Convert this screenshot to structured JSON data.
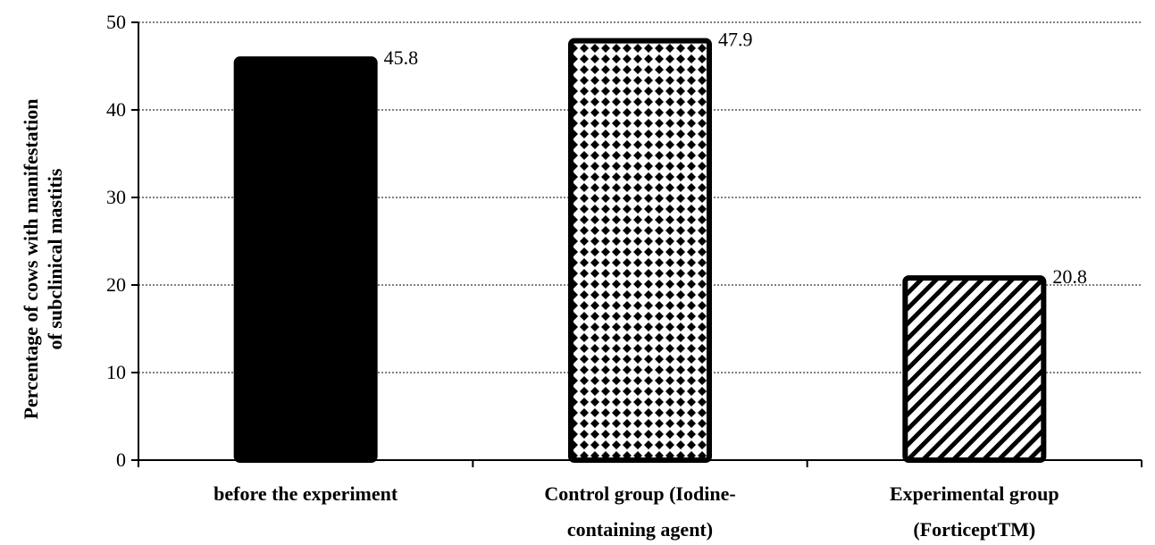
{
  "chart_data": {
    "type": "bar",
    "categories": [
      [
        "before the experiment"
      ],
      [
        "Control group (Iodine-",
        "containing agent)"
      ],
      [
        "Experimental group",
        "(ForticeptTM)"
      ]
    ],
    "values": [
      45.8,
      47.9,
      20.8
    ],
    "data_labels": [
      "45.8",
      "47.9",
      "20.8"
    ],
    "bar_fills": [
      "solid-black",
      "black-checker-diamond",
      "diagonal-stripes"
    ],
    "ylabel": [
      "Percentage of cows with manifestation",
      "of subclinical mastitis"
    ],
    "xlabel": "",
    "title": "",
    "ylim": [
      0,
      50
    ],
    "yticks": [
      0,
      10,
      20,
      30,
      40,
      50
    ],
    "grid": "horizontal-dotted",
    "legend": "none",
    "colors": {
      "bar_stroke": "#000000",
      "background": "#ffffff",
      "grid": "#000000"
    }
  }
}
